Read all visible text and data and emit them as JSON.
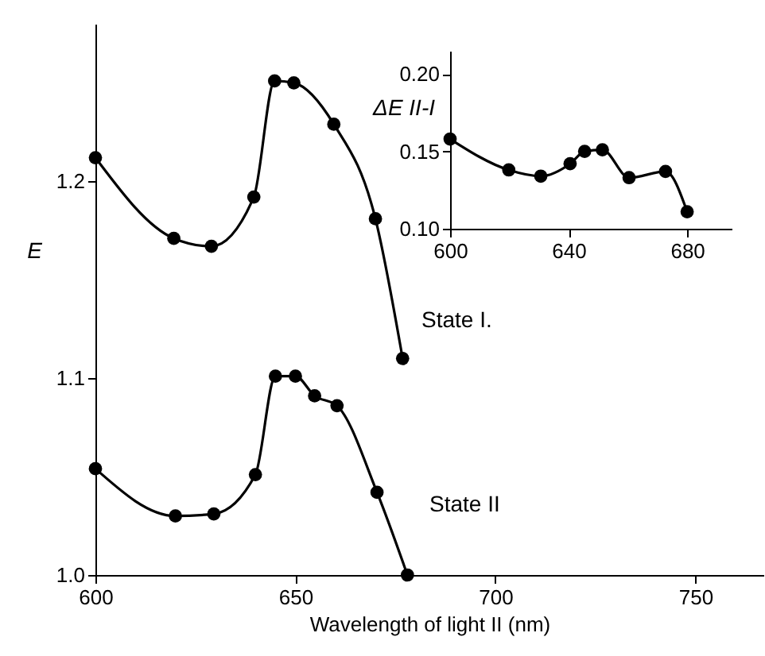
{
  "chart_data": [
    {
      "type": "line",
      "xlabel": "Wavelength of light II (nm)",
      "ylabel": "E",
      "xlim": [
        600,
        767
      ],
      "ylim": [
        1.0,
        1.28
      ],
      "xticks": [
        600,
        650,
        700,
        750
      ],
      "yticks": [
        {
          "value": 1.0,
          "label": "1.0"
        },
        1.1,
        1.2
      ],
      "grid": false,
      "marker": "circle",
      "line_style": "solid",
      "series": [
        {
          "color": "#000000",
          "x": [
            600,
            619.6,
            629,
            639.6,
            644.8,
            649.6,
            659.6,
            670,
            676.8
          ],
          "values": [
            1.212,
            1.171,
            1.167,
            1.192,
            1.251,
            1.25,
            1.229,
            1.181,
            1.11
          ]
        },
        {
          "color": "#000000",
          "x": [
            600,
            620,
            629.6,
            640,
            645,
            650,
            654.8,
            660.4,
            670.4,
            678
          ],
          "values": [
            1.054,
            1.03,
            1.031,
            1.051,
            1.101,
            1.101,
            1.091,
            1.086,
            1.042,
            1.0
          ]
        }
      ],
      "annotations": [
        "State I.",
        "State II"
      ]
    },
    {
      "type": "line",
      "ylabel": "ΔE II-I",
      "xlim": [
        600,
        695
      ],
      "ylim": [
        0.1,
        0.215
      ],
      "xticks": [
        600,
        640,
        680
      ],
      "yticks": [
        {
          "value": 0.1,
          "label": "0.10"
        },
        0.15,
        {
          "value": 0.2,
          "label": "0.20"
        }
      ],
      "grid": false,
      "marker": "circle",
      "line_style": "solid",
      "series": [
        {
          "color": "#000000",
          "x": [
            600,
            619.8,
            630.6,
            640.5,
            645.4,
            651.4,
            660.4,
            672.7,
            680
          ],
          "values": [
            0.158,
            0.138,
            0.134,
            0.142,
            0.15,
            0.151,
            0.133,
            0.137,
            0.111
          ]
        }
      ]
    }
  ]
}
